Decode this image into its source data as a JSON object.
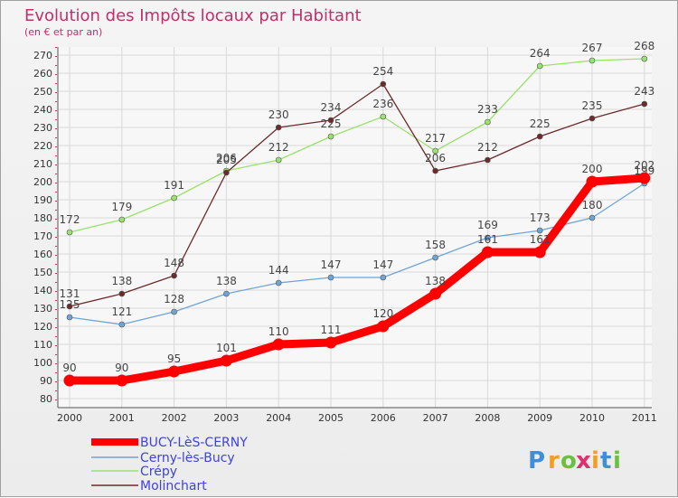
{
  "chart_data": {
    "type": "line",
    "title": "Evolution des Impôts locaux par Habitant",
    "subtitle": "(en € et par an)",
    "xlabel": "",
    "ylabel": "",
    "ylim": [
      80,
      270
    ],
    "ytick_step": 10,
    "grid": true,
    "legend_position": "bottom-left",
    "x": [
      "2000",
      "2001",
      "2002",
      "2003",
      "2004",
      "2005",
      "2006",
      "2007",
      "2008",
      "2009",
      "2010",
      "2011"
    ],
    "series": [
      {
        "name": "BUCY-LèS-CERNY",
        "color": "#ff0000",
        "bold": true,
        "values": [
          90,
          90,
          95,
          101,
          110,
          111,
          120,
          138,
          161,
          161,
          200,
          202
        ]
      },
      {
        "name": "Cerny-lès-Bucy",
        "color": "#6fa4d6",
        "bold": false,
        "values": [
          125,
          121,
          128,
          138,
          144,
          147,
          147,
          158,
          169,
          173,
          180,
          199
        ]
      },
      {
        "name": "Crépy",
        "color": "#99e26b",
        "bold": false,
        "values": [
          172,
          179,
          191,
          206,
          212,
          225,
          236,
          217,
          233,
          264,
          267,
          268
        ]
      },
      {
        "name": "Molinchart",
        "color": "#6b2b2b",
        "bold": false,
        "values": [
          131,
          138,
          148,
          205,
          230,
          234,
          254,
          206,
          212,
          225,
          235,
          243
        ]
      }
    ]
  },
  "logo": {
    "text": "Proxiti",
    "colors": [
      "#3f8fd8",
      "#f0a020",
      "#6cc040",
      "#e03070",
      "#f0a020",
      "#3f8fd8",
      "#6cc040"
    ]
  }
}
